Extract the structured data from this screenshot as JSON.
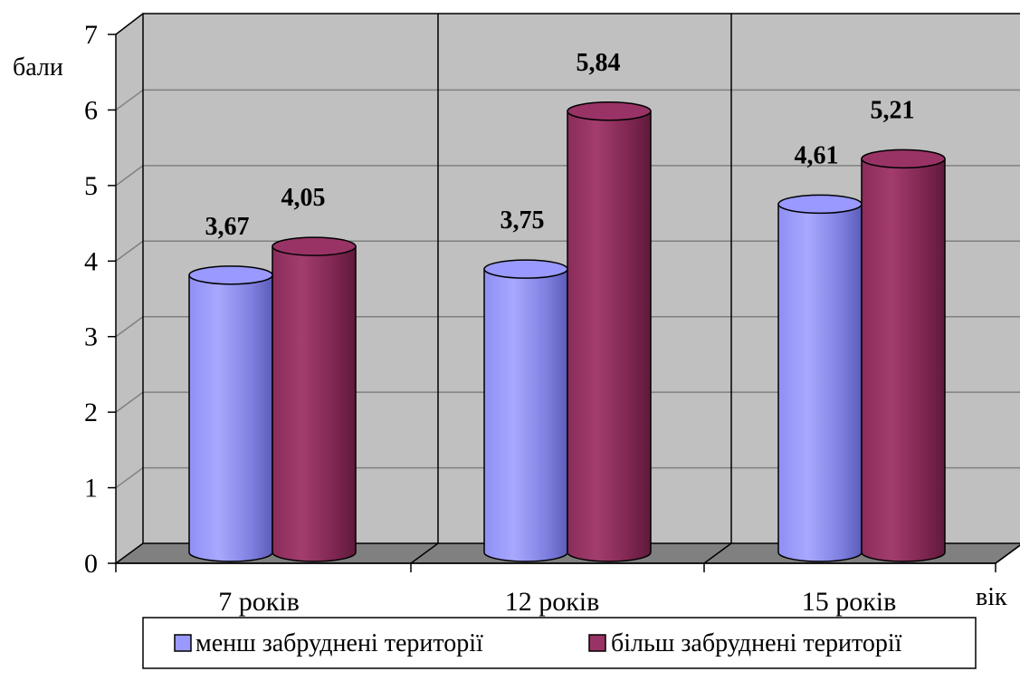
{
  "chart_data": {
    "type": "bar",
    "variant": "3d-cylinder",
    "title": "",
    "xlabel": "вік",
    "ylabel": "бали",
    "ylim": [
      0,
      7
    ],
    "yticks": [
      "0",
      "1",
      "2",
      "3",
      "4",
      "5",
      "6",
      "7"
    ],
    "categories": [
      "7 років",
      "12 років",
      "15 років"
    ],
    "grid": true,
    "legend_position": "bottom",
    "series": [
      {
        "name": "менш забруднені території",
        "values": [
          3.67,
          3.75,
          4.61
        ],
        "labels": [
          "3,67",
          "3,75",
          "4,61"
        ],
        "color": "#9999ff"
      },
      {
        "name": "більш забруднені території",
        "values": [
          4.05,
          5.84,
          5.21
        ],
        "labels": [
          "4,05",
          "5,84",
          "5,21"
        ],
        "color": "#993366"
      }
    ]
  },
  "colors": {
    "wall": "#c0c0c0",
    "floor": "#808080",
    "grid": "#808080"
  }
}
